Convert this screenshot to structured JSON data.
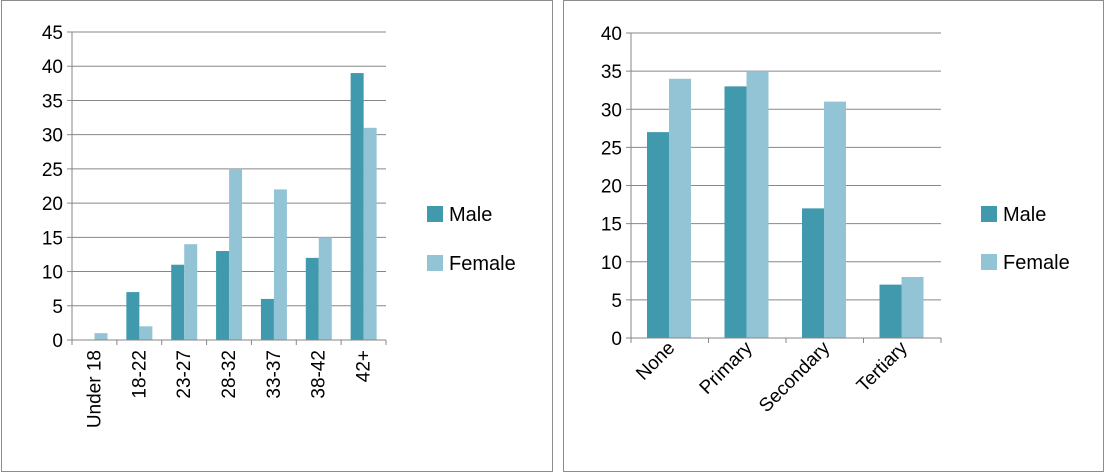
{
  "chart_data": [
    {
      "type": "bar",
      "categories": [
        "Under 18",
        "18-22",
        "23-27",
        "28-32",
        "33-37",
        "38-42",
        "42+"
      ],
      "series": [
        {
          "name": "Male",
          "values": [
            0,
            7,
            11,
            13,
            6,
            12,
            39
          ]
        },
        {
          "name": "Female",
          "values": [
            1,
            2,
            14,
            25,
            22,
            15,
            31
          ]
        }
      ],
      "ylim": [
        0,
        45
      ],
      "yticks": [
        0,
        5,
        10,
        15,
        20,
        25,
        30,
        35,
        40,
        45
      ],
      "xlabel": "",
      "ylabel": "",
      "grid": true,
      "legend": "right",
      "colors": [
        "#4199ae",
        "#93c4d5"
      ]
    },
    {
      "type": "bar",
      "categories": [
        "None",
        "Primary",
        "Secondary",
        "Tertiary"
      ],
      "series": [
        {
          "name": "Male",
          "values": [
            27,
            33,
            17,
            7
          ]
        },
        {
          "name": "Female",
          "values": [
            34,
            35,
            31,
            8
          ]
        }
      ],
      "ylim": [
        0,
        40
      ],
      "yticks": [
        0,
        5,
        10,
        15,
        20,
        25,
        30,
        35,
        40
      ],
      "xlabel": "",
      "ylabel": "",
      "grid": true,
      "legend": "right",
      "colors": [
        "#4199ae",
        "#93c4d5"
      ]
    }
  ]
}
